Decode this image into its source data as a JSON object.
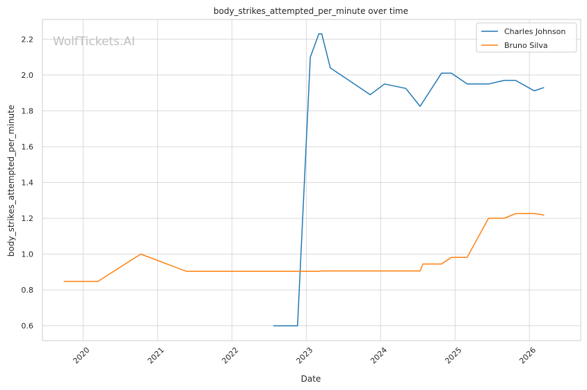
{
  "watermark": "WolfTickets.AI",
  "chart_data": {
    "type": "line",
    "title": "body_strikes_attempted_per_minute over time",
    "xlabel": "Date",
    "ylabel": "body_strikes_attempted_per_minute",
    "x_axis_type": "date",
    "xlim": [
      "2019-06-15",
      "2026-09-10"
    ],
    "ylim": [
      0.517,
      2.31
    ],
    "x_tick_labels": [
      "2020",
      "2021",
      "2022",
      "2023",
      "2024",
      "2025",
      "2026"
    ],
    "y_tick_labels": [
      "0.6",
      "0.8",
      "1.0",
      "1.2",
      "1.4",
      "1.6",
      "1.8",
      "2.0",
      "2.2"
    ],
    "grid": true,
    "legend_position": "top-right",
    "series": [
      {
        "name": "Charles Johnson",
        "color": "#1f77b4",
        "points": [
          [
            "2022-07-23",
            0.6
          ],
          [
            "2022-11-19",
            0.6
          ],
          [
            "2023-01-21",
            2.1
          ],
          [
            "2023-03-04",
            2.23
          ],
          [
            "2023-03-18",
            2.23
          ],
          [
            "2023-04-29",
            2.04
          ],
          [
            "2023-11-11",
            1.89
          ],
          [
            "2024-01-20",
            1.95
          ],
          [
            "2024-05-04",
            1.925
          ],
          [
            "2024-07-13",
            1.825
          ],
          [
            "2024-10-26",
            2.01
          ],
          [
            "2024-12-14",
            2.01
          ],
          [
            "2025-03-01",
            1.95
          ],
          [
            "2025-06-14",
            1.95
          ],
          [
            "2025-08-30",
            1.97
          ],
          [
            "2025-10-25",
            1.97
          ],
          [
            "2026-01-24",
            1.912
          ],
          [
            "2026-03-14",
            1.93
          ]
        ]
      },
      {
        "name": "Bruno Silva",
        "color": "#ff7f0e",
        "points": [
          [
            "2019-09-28",
            0.848
          ],
          [
            "2020-03-14",
            0.848
          ],
          [
            "2020-10-10",
            1.0
          ],
          [
            "2021-05-22",
            0.904
          ],
          [
            "2023-03-04",
            0.904
          ],
          [
            "2023-03-18",
            0.906
          ],
          [
            "2024-07-13",
            0.906
          ],
          [
            "2024-07-27",
            0.945
          ],
          [
            "2024-10-26",
            0.945
          ],
          [
            "2024-12-14",
            0.982
          ],
          [
            "2025-03-01",
            0.982
          ],
          [
            "2025-06-14",
            1.2
          ],
          [
            "2025-08-30",
            1.2
          ],
          [
            "2025-10-25",
            1.226
          ],
          [
            "2026-01-24",
            1.226
          ],
          [
            "2026-03-07",
            1.22
          ],
          [
            "2026-03-14",
            1.215
          ]
        ]
      }
    ]
  }
}
